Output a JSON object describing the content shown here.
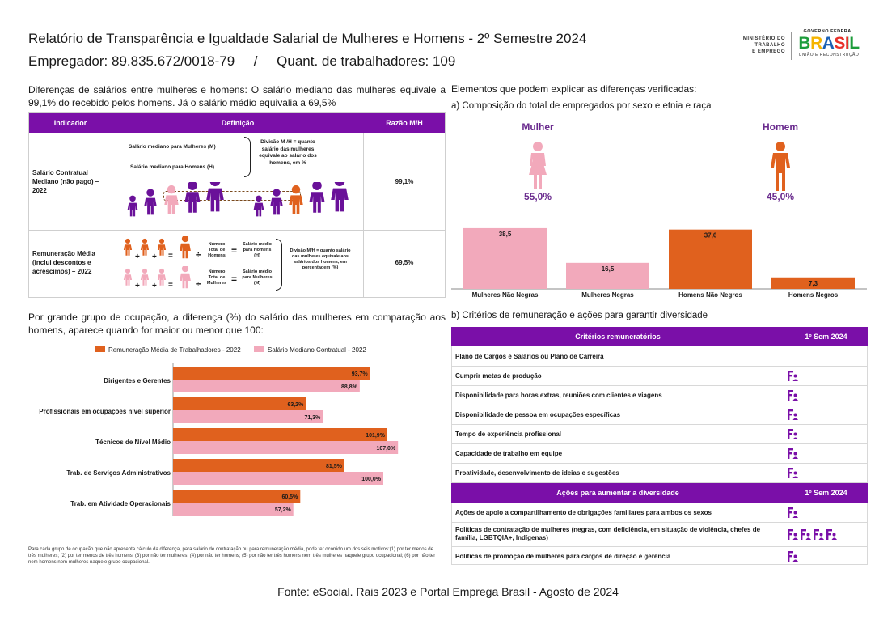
{
  "header": {
    "title": "Relatório de Transparência e Igualdade Salarial de Mulheres e Homens - 2º Semestre 2024",
    "employer_line": "Empregador: 89.835.672/0018-79     /     Quant. de trabalhadores: 109",
    "logo_ministry": [
      "MINISTÉRIO DO",
      "TRABALHO",
      "E EMPREGO"
    ],
    "logo_gov": "GOVERNO FEDERAL",
    "logo_brasil": "BRASIL",
    "logo_slogan": "UNIÃO E RECONSTRUÇÃO"
  },
  "intro": {
    "text": "Diferenças de salários entre mulheres e homens: O salário mediano das mulheres equivale a 99,1% do recebido pelos homens. Já o salário médio equivalia a 69,5%"
  },
  "indicator_table": {
    "headers": [
      "Indicador",
      "Definição",
      "Razão M/H"
    ],
    "row1": {
      "indicator": "Salário Contratual Mediano (não pago) – 2022",
      "def_women": "Salário mediano para Mulheres (M)",
      "def_men": "Salário mediano para Homens (H)",
      "def_division": "Divisão M /H = quanto salário das mulheres equivale ao salário dos homens, em %",
      "ratio": "99,1%"
    },
    "row2": {
      "indicator": "Remuneração Média (inclui descontos e acréscimos) – 2022",
      "men_total": "Número Total de Homens",
      "men_result": "Salário médio para Homens (H)",
      "women_total": "Número Total de Mulheres",
      "women_result": "Salário médio para Mulheres (M)",
      "def_division": "Divisão M/H = quanto salário das mulheres equivale aos salários dos homens, em porcentagem (%)",
      "ratio": "69,5%",
      "op_plus": "+",
      "op_div": "÷",
      "op_eq": "="
    }
  },
  "right_section": {
    "title": "Elementos que podem explicar as diferenças verificadas:",
    "sub_a": "a) Composição do total de empregados por sexo e etnia e raça",
    "woman_label": "Mulher",
    "woman_pct": "55,0%",
    "man_label": "Homem",
    "man_pct": "45,0%"
  },
  "occupation_section": {
    "text": "Por grande grupo de ocupação, a diferença (%) do salário das mulheres em comparação aos homens, aparece quando for maior ou menor que 100:",
    "footnote": "Para cada grupo de ocupação que não apresenta cálculo da diferença, para salário de contratação ou para remuneração média, pode ter ocorrido um dos seis motivos:(1) por ter menos de três mulheres; (2) por ter menos de três homens; (3) por não ter mulheres; (4) por não ter homens; (5) por não ter três homens nem três mulheres naquele grupo ocupacional; (6) por não ter nem homens nem mulheres naquele grupo ocupacional."
  },
  "criteria_section": {
    "title": "b) Critérios de remuneração e ações para garantir diversidade",
    "header1": "Critérios remuneratórios",
    "header_col": "1º Sem 2024",
    "criteria": [
      {
        "label": "Plano de Cargos e Salários ou Plano de Carreira",
        "icons": 0
      },
      {
        "label": "Cumprir metas de produção",
        "icons": 1
      },
      {
        "label": "Disponibilidade para horas extras, reuniões com clientes e viagens",
        "icons": 1
      },
      {
        "label": "Disponibilidade de pessoa em ocupações específicas",
        "icons": 1
      },
      {
        "label": "Tempo de experiência profissional",
        "icons": 1
      },
      {
        "label": "Capacidade de trabalho em equipe",
        "icons": 1
      },
      {
        "label": "Proatividade, desenvolvimento de ideias e sugestões",
        "icons": 1
      }
    ],
    "header2": "Ações para aumentar a diversidade",
    "actions": [
      {
        "label": "Ações de apoio a compartilhamento de obrigações familiares para ambos os sexos",
        "icons": 1
      },
      {
        "label": "Políticas de contratação de mulheres (negras, com deficiência, em situação de violência, chefes de família, LGBTQIA+, Indígenas)",
        "icons": 4
      },
      {
        "label": "Políticas de promoção de mulheres para cargos de direção e gerência",
        "icons": 1
      }
    ]
  },
  "footer": {
    "source": "Fonte: eSocial. Rais 2023 e Portal Emprega Brasil - Agosto de 2024"
  },
  "colors": {
    "purple": "#7a0fa8",
    "orange": "#e0611e",
    "pink": "#f2a9bb",
    "figure_purple": "#6a1199"
  },
  "chart_data": [
    {
      "type": "bar",
      "orientation": "vertical",
      "categories": [
        "Mulheres Não Negras",
        "Mulheres Negras",
        "Homens Não Negros",
        "Homens Negros"
      ],
      "values": [
        38.5,
        16.5,
        37.6,
        7.3
      ],
      "value_labels": [
        "38,5",
        "16,5",
        "37,6",
        "7,3"
      ],
      "colors": [
        "#f2a9bb",
        "#f2a9bb",
        "#e0611e",
        "#e0611e"
      ],
      "ylim": [
        0,
        40
      ],
      "title": "",
      "xlabel": "",
      "ylabel": ""
    },
    {
      "type": "bar",
      "orientation": "horizontal",
      "categories": [
        "Dirigentes e Gerentes",
        "Profissionais em ocupações nível superior",
        "Técnicos de Nível Médio",
        "Trab. de Serviços Administrativos",
        "Trab. em Atividade Operacionais"
      ],
      "series": [
        {
          "name": "Remuneração Média de Trabalhadores - 2022",
          "color": "#e0611e",
          "values": [
            93.7,
            63.2,
            101.9,
            81.5,
            60.5
          ],
          "labels": [
            "93,7%",
            "63,2%",
            "101,9%",
            "81,5%",
            "60,5%"
          ]
        },
        {
          "name": "Salário Mediano Contratual - 2022",
          "color": "#f2a9bb",
          "values": [
            88.8,
            71.3,
            107.0,
            100.0,
            57.2
          ],
          "labels": [
            "88,8%",
            "71,3%",
            "107,0%",
            "100,0%",
            "57,2%"
          ]
        }
      ],
      "xlim": [
        0,
        110
      ],
      "legend": "top",
      "title": "",
      "xlabel": "",
      "ylabel": ""
    }
  ]
}
